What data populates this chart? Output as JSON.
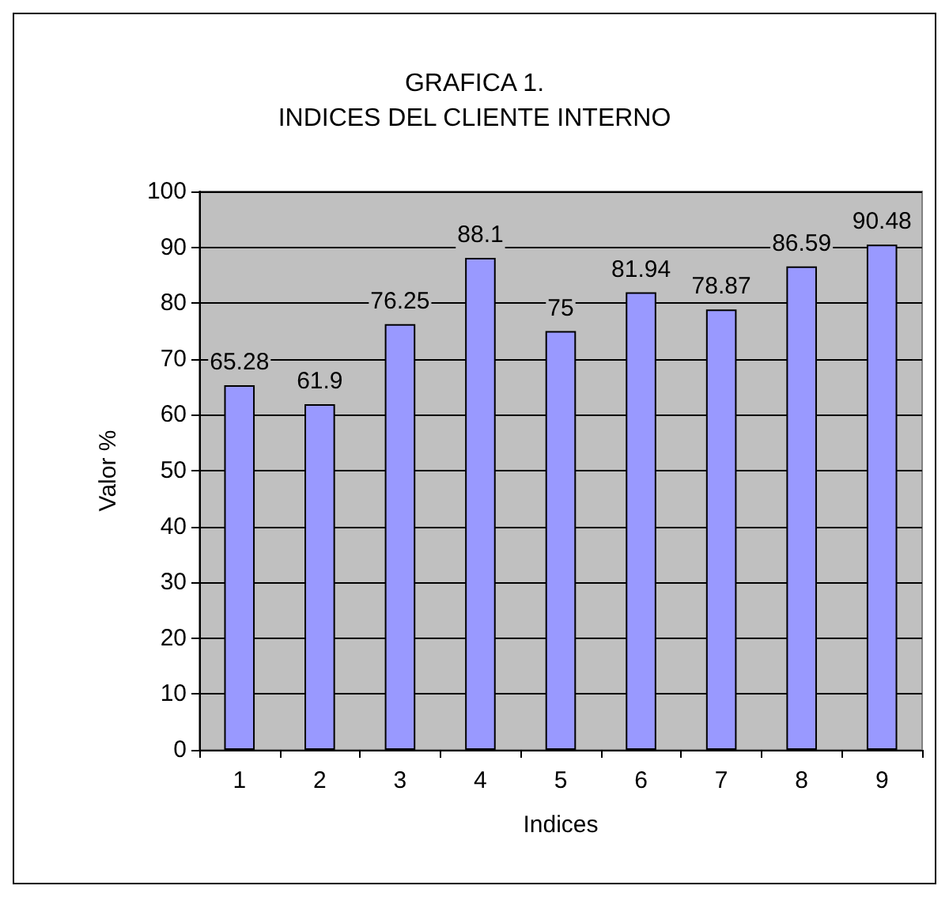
{
  "chart_data": {
    "type": "bar",
    "title": "GRAFICA 1.\nINDICES DEL CLIENTE INTERNO",
    "xlabel": "Indices",
    "ylabel": "Valor %",
    "categories": [
      "1",
      "2",
      "3",
      "4",
      "5",
      "6",
      "7",
      "8",
      "9"
    ],
    "values": [
      65.28,
      61.9,
      76.25,
      88.1,
      75,
      81.94,
      78.87,
      86.59,
      90.48
    ],
    "color": "#9999ff",
    "ylim": [
      0,
      100
    ],
    "yticks": [
      0,
      10,
      20,
      30,
      40,
      50,
      60,
      70,
      80,
      90,
      100
    ],
    "grid": "y",
    "data_labels": true
  }
}
